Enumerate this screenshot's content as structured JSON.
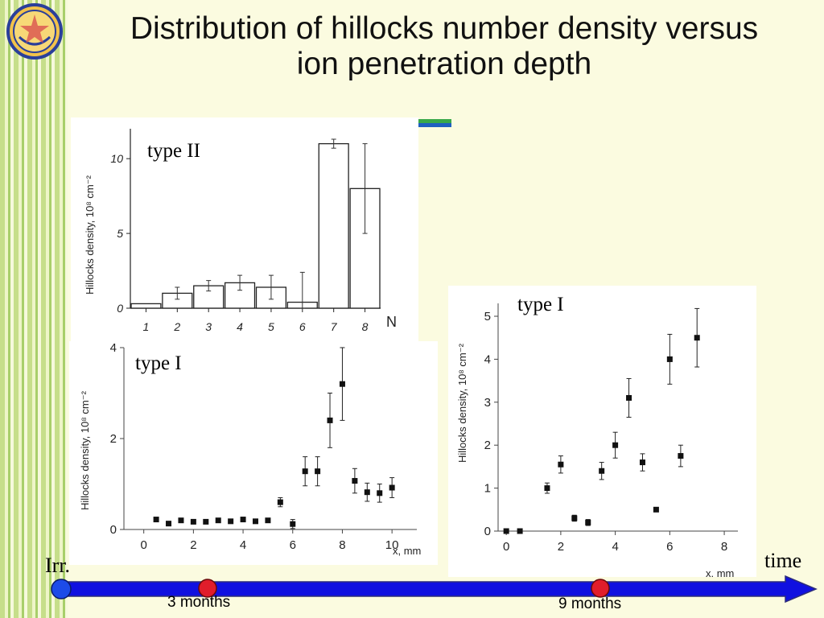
{
  "slide": {
    "title_line1": "Distribution of hillocks number density versus",
    "title_line2": "ion penetration depth",
    "colors": {
      "background": "#fbfbe0",
      "timeline": "#1010e0",
      "marker": "#e11d2b",
      "start": "#1d4be8"
    },
    "logo_icon": "institute-logo-icon"
  },
  "timeline": {
    "start_label": "Irr.",
    "end_label": "time",
    "markers": [
      "3 months",
      "9 months"
    ]
  },
  "chart_data": [
    {
      "type": "bar",
      "panel_label": "type II",
      "ylabel": "Hillocks density, 10⁸ cm⁻²",
      "xlabel": "N",
      "categories": [
        "1",
        "2",
        "3",
        "4",
        "5",
        "6",
        "7",
        "8"
      ],
      "values": [
        0.3,
        1.0,
        1.5,
        1.7,
        1.4,
        0.4,
        11.0,
        8.0
      ],
      "errors": [
        0,
        0.4,
        0.35,
        0.5,
        0.8,
        2.0,
        0.3,
        3.0
      ],
      "yticks": [
        0,
        5,
        10
      ],
      "ylim": [
        0,
        12
      ]
    },
    {
      "type": "scatter",
      "panel_label": "type I",
      "ylabel": "Hillocks density, 10⁸ cm⁻²",
      "xlabel": "x, mm",
      "xticks": [
        0,
        2,
        4,
        6,
        8,
        10
      ],
      "yticks": [
        0,
        2,
        4
      ],
      "xlim": [
        -0.8,
        11
      ],
      "ylim": [
        0,
        4
      ],
      "points": [
        {
          "x": 0.5,
          "y": 0.22,
          "err": 0
        },
        {
          "x": 1.0,
          "y": 0.13,
          "err": 0
        },
        {
          "x": 1.5,
          "y": 0.2,
          "err": 0
        },
        {
          "x": 2.0,
          "y": 0.17,
          "err": 0
        },
        {
          "x": 2.5,
          "y": 0.17,
          "err": 0
        },
        {
          "x": 3.0,
          "y": 0.2,
          "err": 0
        },
        {
          "x": 3.5,
          "y": 0.18,
          "err": 0
        },
        {
          "x": 4.0,
          "y": 0.22,
          "err": 0
        },
        {
          "x": 4.5,
          "y": 0.18,
          "err": 0
        },
        {
          "x": 5.0,
          "y": 0.2,
          "err": 0
        },
        {
          "x": 5.5,
          "y": 0.6,
          "err": 0.1
        },
        {
          "x": 6.0,
          "y": 0.12,
          "err": 0.1
        },
        {
          "x": 6.5,
          "y": 1.28,
          "err": 0.32
        },
        {
          "x": 7.0,
          "y": 1.28,
          "err": 0.32
        },
        {
          "x": 7.5,
          "y": 2.4,
          "err": 0.6
        },
        {
          "x": 8.0,
          "y": 3.2,
          "err": 0.8
        },
        {
          "x": 8.5,
          "y": 1.07,
          "err": 0.27
        },
        {
          "x": 9.0,
          "y": 0.82,
          "err": 0.2
        },
        {
          "x": 9.5,
          "y": 0.8,
          "err": 0.2
        },
        {
          "x": 10.0,
          "y": 0.92,
          "err": 0.22
        }
      ]
    },
    {
      "type": "scatter",
      "panel_label": "type I",
      "ylabel": "Hillocks density, 10⁸ cm⁻²",
      "xlabel": "x, mm",
      "xticks": [
        0,
        2,
        4,
        6,
        8
      ],
      "yticks": [
        0,
        1,
        2,
        3,
        4,
        5
      ],
      "xlim": [
        -0.3,
        8.5
      ],
      "ylim": [
        0,
        5.3
      ],
      "points": [
        {
          "x": 0.0,
          "y": 0.0,
          "err": 0
        },
        {
          "x": 0.5,
          "y": 0.0,
          "err": 0
        },
        {
          "x": 1.5,
          "y": 1.0,
          "err": 0.12
        },
        {
          "x": 2.0,
          "y": 1.55,
          "err": 0.2
        },
        {
          "x": 2.5,
          "y": 0.3,
          "err": 0.07
        },
        {
          "x": 3.0,
          "y": 0.2,
          "err": 0.07
        },
        {
          "x": 3.5,
          "y": 1.4,
          "err": 0.2
        },
        {
          "x": 4.0,
          "y": 2.0,
          "err": 0.3
        },
        {
          "x": 4.5,
          "y": 3.1,
          "err": 0.45
        },
        {
          "x": 5.0,
          "y": 1.6,
          "err": 0.2
        },
        {
          "x": 5.5,
          "y": 0.5,
          "err": 0
        },
        {
          "x": 6.0,
          "y": 4.0,
          "err": 0.58
        },
        {
          "x": 6.4,
          "y": 1.75,
          "err": 0.25
        },
        {
          "x": 7.0,
          "y": 4.5,
          "err": 0.68
        }
      ]
    }
  ]
}
